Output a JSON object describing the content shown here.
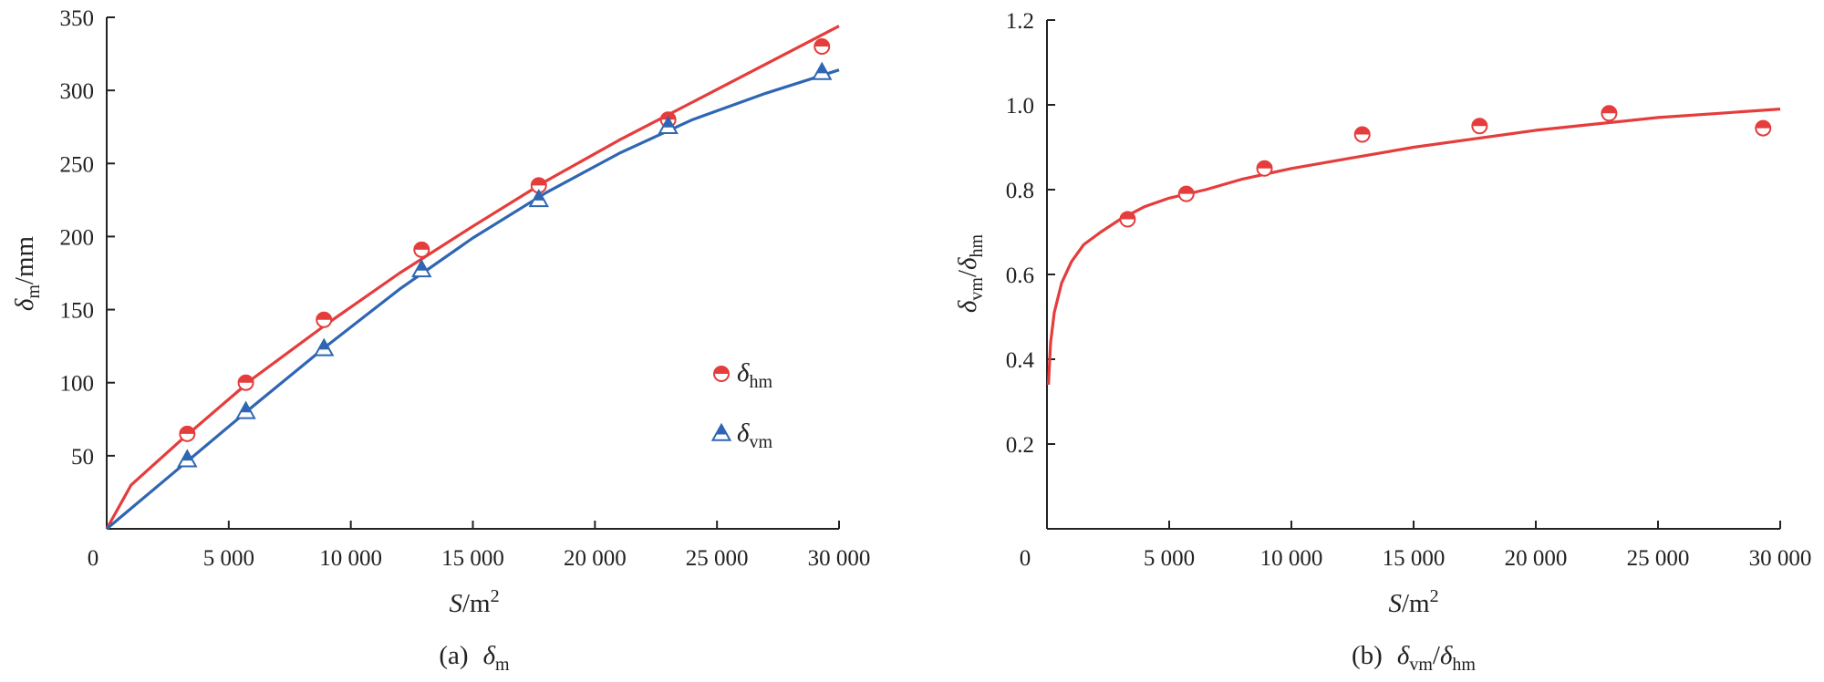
{
  "colors": {
    "red": "#e53c3c",
    "blue": "#2f66b3",
    "axis": "#222222",
    "background": "#ffffff"
  },
  "chart_data": [
    {
      "type": "scatter",
      "panel": "a",
      "caption": {
        "prefix": "(a)",
        "symbol": "δ",
        "subscript": "m"
      },
      "xlabel": {
        "main": "S",
        "unit": "/m",
        "sup": "2"
      },
      "ylabel": {
        "main": "δ",
        "sub": "m",
        "unit": "/mm"
      },
      "xlim": [
        0,
        30000
      ],
      "ylim": [
        0,
        350
      ],
      "x_ticks": [
        0,
        5000,
        10000,
        15000,
        20000,
        25000,
        30000
      ],
      "x_tick_labels": [
        "0",
        "5 000",
        "10 000",
        "15 000",
        "20 000",
        "25 000",
        "30 000"
      ],
      "y_ticks": [
        50,
        100,
        150,
        200,
        250,
        300,
        350
      ],
      "y_tick_labels": [
        "50",
        "100",
        "150",
        "200",
        "250",
        "300",
        "350"
      ],
      "grid": false,
      "legend_position": "right",
      "series": [
        {
          "name": "δhm",
          "legend": {
            "symbol": "δ",
            "sub": "hm"
          },
          "marker": "half-filled-circle",
          "color": "#e53c3c",
          "points": [
            [
              3300,
              65
            ],
            [
              5700,
              100
            ],
            [
              8900,
              143
            ],
            [
              12900,
              191
            ],
            [
              17700,
              235
            ],
            [
              23000,
              280
            ],
            [
              29300,
              330
            ]
          ],
          "fit": [
            [
              0,
              0
            ],
            [
              1000,
              30
            ],
            [
              3000,
              60
            ],
            [
              6000,
              103
            ],
            [
              9000,
              140
            ],
            [
              12000,
              175
            ],
            [
              15000,
              207
            ],
            [
              18000,
              238
            ],
            [
              21000,
              266
            ],
            [
              24000,
              292
            ],
            [
              27000,
              318
            ],
            [
              30000,
              344
            ]
          ]
        },
        {
          "name": "δvm",
          "legend": {
            "symbol": "δ",
            "sub": "vm"
          },
          "marker": "half-filled-triangle",
          "color": "#2f66b3",
          "points": [
            [
              3300,
              47
            ],
            [
              5700,
              80
            ],
            [
              8900,
              123
            ],
            [
              12900,
              177
            ],
            [
              17700,
              225
            ],
            [
              23000,
              275
            ],
            [
              29300,
              312
            ]
          ],
          "fit": [
            [
              0,
              0
            ],
            [
              3000,
              42
            ],
            [
              6000,
              84
            ],
            [
              9000,
              125
            ],
            [
              12000,
              164
            ],
            [
              15000,
              199
            ],
            [
              18000,
              230
            ],
            [
              21000,
              257
            ],
            [
              24000,
              280
            ],
            [
              27000,
              298
            ],
            [
              30000,
              314
            ]
          ]
        }
      ]
    },
    {
      "type": "scatter",
      "panel": "b",
      "caption": {
        "prefix": "(b)",
        "symbol1": "δ",
        "sub1": "vm",
        "slash": "/",
        "symbol2": "δ",
        "sub2": "hm"
      },
      "xlabel": {
        "main": "S",
        "unit": "/m",
        "sup": "2"
      },
      "ylabel": {
        "symbol1": "δ",
        "sub1": "vm",
        "slash": "/",
        "symbol2": "δ",
        "sub2": "hm"
      },
      "xlim": [
        0,
        30000
      ],
      "ylim": [
        0,
        1.2
      ],
      "x_ticks": [
        0,
        5000,
        10000,
        15000,
        20000,
        25000,
        30000
      ],
      "x_tick_labels": [
        "0",
        "5 000",
        "10 000",
        "15 000",
        "20 000",
        "25 000",
        "30 000"
      ],
      "y_ticks": [
        0.2,
        0.4,
        0.6,
        0.8,
        1.0,
        1.2
      ],
      "y_tick_labels": [
        "0.2",
        "0.4",
        "0.6",
        "0.8",
        "1.0",
        "1.2"
      ],
      "grid": false,
      "series": [
        {
          "marker": "half-filled-circle",
          "color": "#e53c3c",
          "points": [
            [
              3300,
              0.73
            ],
            [
              5700,
              0.79
            ],
            [
              8900,
              0.85
            ],
            [
              12900,
              0.93
            ],
            [
              17700,
              0.95
            ],
            [
              23000,
              0.98
            ],
            [
              29300,
              0.945
            ]
          ],
          "fit": [
            [
              60,
              0.34
            ],
            [
              150,
              0.44
            ],
            [
              300,
              0.51
            ],
            [
              600,
              0.58
            ],
            [
              1000,
              0.63
            ],
            [
              1500,
              0.67
            ],
            [
              2200,
              0.7
            ],
            [
              3000,
              0.73
            ],
            [
              4000,
              0.76
            ],
            [
              5000,
              0.78
            ],
            [
              6500,
              0.8
            ],
            [
              8000,
              0.825
            ],
            [
              10000,
              0.85
            ],
            [
              12500,
              0.875
            ],
            [
              15000,
              0.9
            ],
            [
              17500,
              0.92
            ],
            [
              20000,
              0.94
            ],
            [
              22500,
              0.955
            ],
            [
              25000,
              0.97
            ],
            [
              27500,
              0.98
            ],
            [
              30000,
              0.99
            ]
          ]
        }
      ]
    }
  ]
}
